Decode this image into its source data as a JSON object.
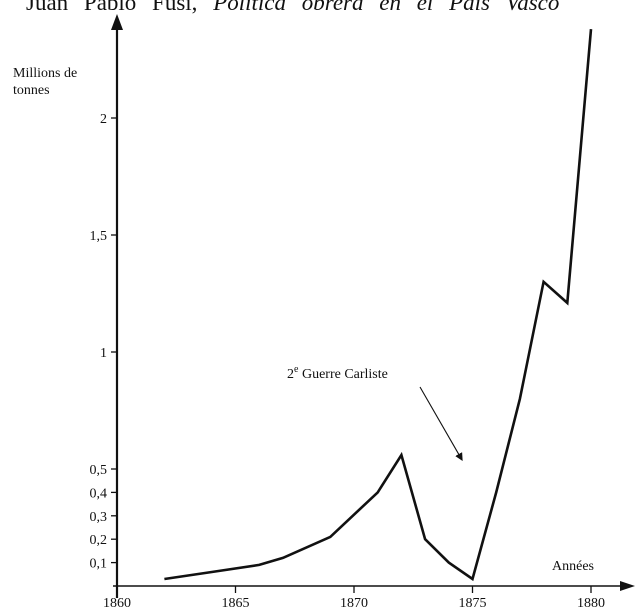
{
  "header": {
    "author": "Juan Pablo Fusi,",
    "work": "Política obrera en el País Vasco"
  },
  "chart_data": {
    "type": "line",
    "title": "",
    "xlabel": "Années",
    "ylabel": "Millions de tonnes",
    "xlim": [
      1860,
      1881
    ],
    "ylim": [
      0,
      2.4
    ],
    "x_ticks": [
      1860,
      1865,
      1870,
      1875,
      1880
    ],
    "x_tick_labels": [
      "1860",
      "1865",
      "1870",
      "1875",
      "1880"
    ],
    "y_ticks": [
      0.1,
      0.2,
      0.3,
      0.4,
      0.5,
      1,
      1.5,
      2
    ],
    "y_tick_labels": [
      "0,1",
      "0,2",
      "0,3",
      "0,4",
      "0,5",
      "1",
      "1,5",
      "2"
    ],
    "grid": false,
    "series": [
      {
        "name": "",
        "x": [
          1862,
          1864,
          1866,
          1867,
          1869,
          1871,
          1872,
          1873,
          1874,
          1875,
          1876,
          1877,
          1878,
          1879,
          1880
        ],
        "values": [
          0.03,
          0.06,
          0.09,
          0.12,
          0.21,
          0.4,
          0.56,
          0.2,
          0.1,
          0.03,
          0.4,
          0.8,
          1.3,
          1.21,
          2.38
        ]
      }
    ],
    "annotations": [
      {
        "text": "2e Guerre Carliste",
        "main": "2",
        "sup": "e",
        "rest": " Guerre Carliste",
        "points_to": [
          1874.5,
          0.55
        ]
      }
    ]
  }
}
